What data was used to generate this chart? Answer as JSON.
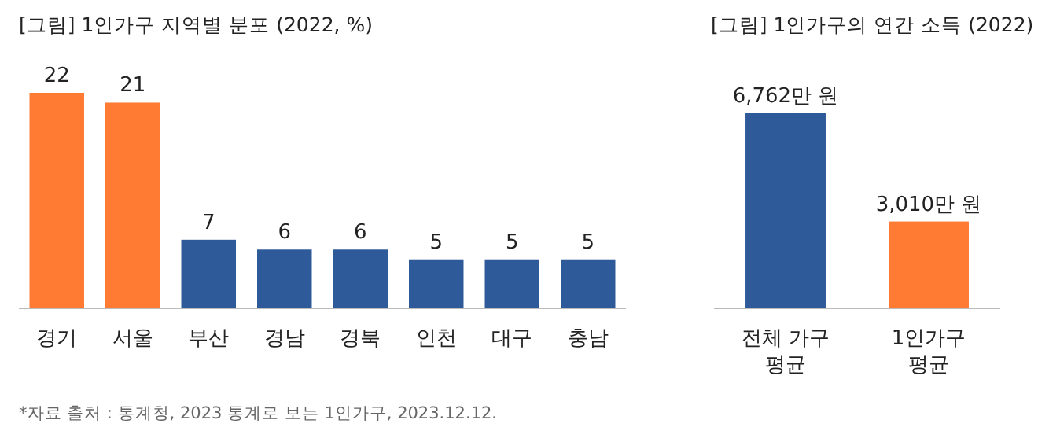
{
  "chart_data": [
    {
      "type": "bar",
      "title": "[그림] 1인가구 지역별 분포 (2022, %)",
      "categories": [
        "경기",
        "서울",
        "부산",
        "경남",
        "경북",
        "인천",
        "대구",
        "충남"
      ],
      "values": [
        22,
        21,
        7,
        6,
        6,
        5,
        5,
        5
      ],
      "colors": [
        "#ff7a33",
        "#ff7a33",
        "#2e5a9a",
        "#2e5a9a",
        "#2e5a9a",
        "#2e5a9a",
        "#2e5a9a",
        "#2e5a9a"
      ],
      "data_labels": true,
      "annotations": [
        "*자료 출처 : 통계청, 2023 통계로 보는 1인가구, 2023.12.12."
      ]
    },
    {
      "type": "bar",
      "title": "[그림] 1인가구의 연간 소득 (2022)",
      "categories": [
        "전체 가구 평균",
        "1인가구 평균"
      ],
      "values": [
        6762,
        3010
      ],
      "colors": [
        "#2e5a9a",
        "#ff7a33"
      ],
      "value_labels": [
        "6,762만 원",
        "3,010만 원"
      ]
    }
  ]
}
